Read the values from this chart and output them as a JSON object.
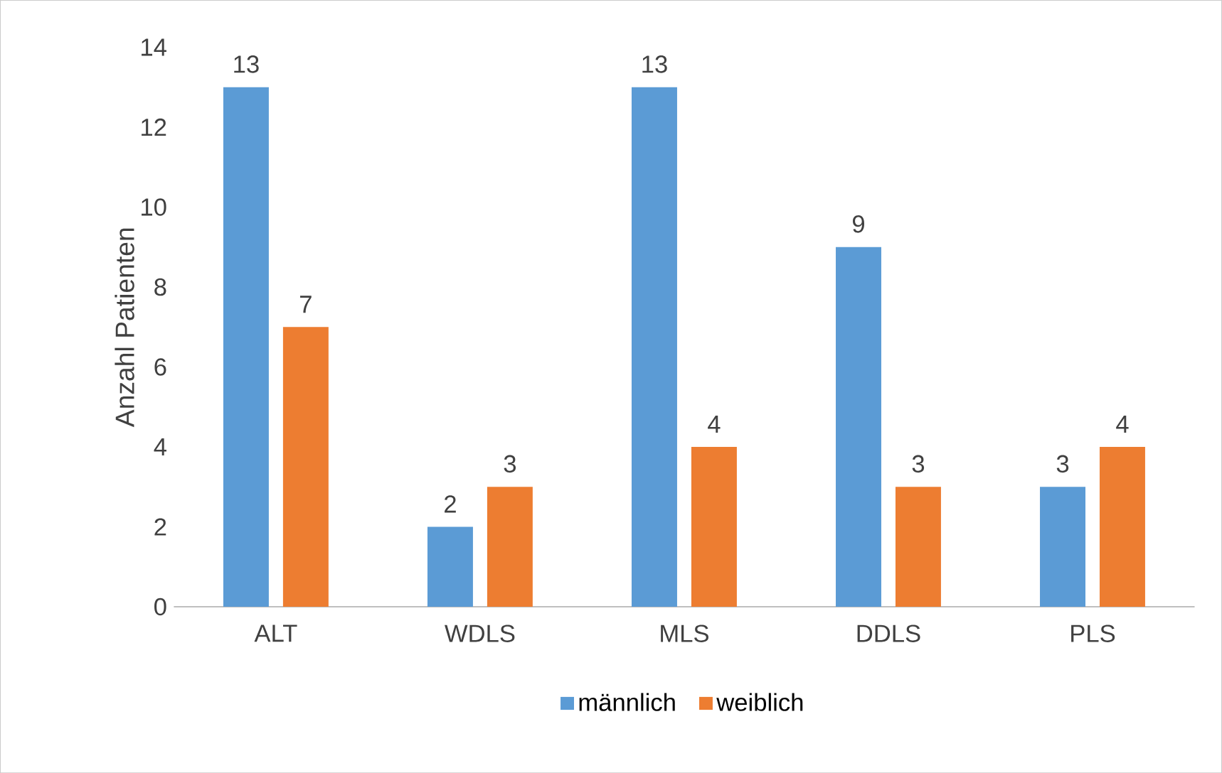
{
  "chart_data": {
    "type": "bar",
    "ylabel": "Anzahl Patienten",
    "categories": [
      "ALT",
      "WDLS",
      "MLS",
      "DDLS",
      "PLS"
    ],
    "series": [
      {
        "name": "männlich",
        "color": "#5b9bd5",
        "values": [
          13,
          2,
          13,
          9,
          3
        ]
      },
      {
        "name": "weiblich",
        "color": "#ed7d31",
        "values": [
          7,
          3,
          4,
          3,
          4
        ]
      }
    ],
    "ylim": [
      0,
      14
    ],
    "yticks": [
      0,
      2,
      4,
      6,
      8,
      10,
      12,
      14
    ],
    "data_labels": true,
    "grid": false,
    "legend": "bottom"
  }
}
